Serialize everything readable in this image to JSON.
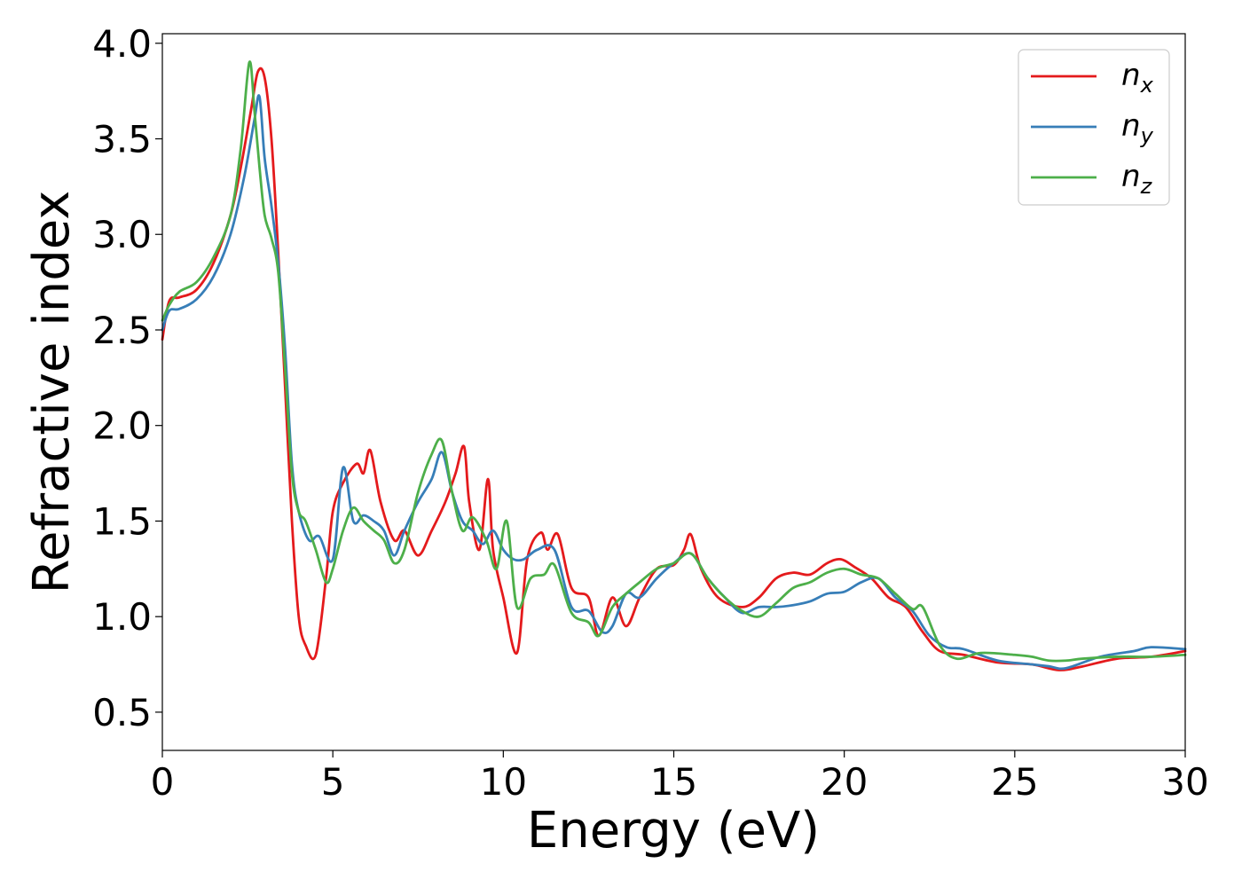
{
  "chart_data": {
    "type": "line",
    "title": "",
    "xlabel": "Energy (eV)",
    "ylabel": "Refractive index",
    "xlim": [
      0,
      30
    ],
    "ylim": [
      0.3,
      4.05
    ],
    "xticks": [
      0,
      5,
      10,
      15,
      20,
      25,
      30
    ],
    "xtick_labels": [
      "0",
      "5",
      "10",
      "15",
      "20",
      "25",
      "30"
    ],
    "yticks": [
      0.5,
      1.0,
      1.5,
      2.0,
      2.5,
      3.0,
      3.5,
      4.0
    ],
    "ytick_labels": [
      "0.5",
      "1.0",
      "1.5",
      "2.0",
      "2.5",
      "3.0",
      "3.5",
      "4.0"
    ],
    "grid": false,
    "legend_position": "top-right",
    "series": [
      {
        "name": "n_x",
        "label_base": "n",
        "label_sub": "x",
        "color": "#e41a1c",
        "x": [
          0,
          0.2,
          0.5,
          1.0,
          1.5,
          2.0,
          2.3,
          2.6,
          2.8,
          3.0,
          3.2,
          3.4,
          3.6,
          3.8,
          4.0,
          4.2,
          4.5,
          4.8,
          5.0,
          5.3,
          5.7,
          5.9,
          6.1,
          6.4,
          6.8,
          7.1,
          7.5,
          7.9,
          8.3,
          8.6,
          8.85,
          9.0,
          9.3,
          9.55,
          9.7,
          10.0,
          10.4,
          10.7,
          11.1,
          11.3,
          11.6,
          12.0,
          12.5,
          12.8,
          13.2,
          13.6,
          14.0,
          14.5,
          15.0,
          15.3,
          15.5,
          15.8,
          16.3,
          17.0,
          17.5,
          18.0,
          18.5,
          19.0,
          19.5,
          19.9,
          20.3,
          20.8,
          21.3,
          21.8,
          22.3,
          22.8,
          23.5,
          24.5,
          25.5,
          26.3,
          27.0,
          28.0,
          29.0,
          30.0
        ],
        "y": [
          2.45,
          2.65,
          2.67,
          2.71,
          2.85,
          3.1,
          3.35,
          3.65,
          3.85,
          3.82,
          3.5,
          2.9,
          2.2,
          1.5,
          1.0,
          0.85,
          0.8,
          1.2,
          1.55,
          1.7,
          1.8,
          1.75,
          1.87,
          1.6,
          1.4,
          1.45,
          1.32,
          1.45,
          1.6,
          1.75,
          1.89,
          1.6,
          1.35,
          1.72,
          1.35,
          1.1,
          0.81,
          1.3,
          1.44,
          1.35,
          1.43,
          1.15,
          1.1,
          0.9,
          1.1,
          0.95,
          1.1,
          1.25,
          1.27,
          1.35,
          1.43,
          1.25,
          1.1,
          1.05,
          1.1,
          1.2,
          1.23,
          1.22,
          1.28,
          1.3,
          1.26,
          1.2,
          1.1,
          1.05,
          0.92,
          0.82,
          0.8,
          0.76,
          0.75,
          0.72,
          0.74,
          0.78,
          0.79,
          0.82
        ]
      },
      {
        "name": "n_y",
        "label_base": "n",
        "label_sub": "y",
        "color": "#377eb8",
        "x": [
          0,
          0.2,
          0.5,
          1.0,
          1.5,
          2.0,
          2.4,
          2.7,
          2.85,
          3.0,
          3.2,
          3.4,
          3.6,
          3.8,
          4.0,
          4.3,
          4.6,
          5.0,
          5.3,
          5.6,
          5.9,
          6.2,
          6.5,
          6.8,
          7.1,
          7.5,
          7.9,
          8.2,
          8.5,
          8.8,
          9.1,
          9.4,
          9.7,
          10.0,
          10.3,
          10.6,
          11.0,
          11.5,
          12.0,
          12.5,
          12.9,
          13.2,
          13.6,
          14.0,
          14.5,
          15.0,
          15.5,
          16.0,
          16.5,
          17.0,
          17.5,
          18.0,
          18.5,
          19.0,
          19.5,
          20.0,
          20.5,
          21.0,
          21.5,
          22.0,
          22.5,
          23.0,
          23.5,
          24.5,
          25.5,
          26.0,
          26.5,
          27.5,
          28.5,
          29.0,
          30.0
        ],
        "y": [
          2.5,
          2.6,
          2.61,
          2.66,
          2.78,
          3.0,
          3.3,
          3.6,
          3.72,
          3.4,
          3.15,
          2.85,
          2.4,
          1.8,
          1.55,
          1.4,
          1.42,
          1.3,
          1.78,
          1.5,
          1.53,
          1.5,
          1.45,
          1.32,
          1.45,
          1.6,
          1.72,
          1.86,
          1.65,
          1.5,
          1.45,
          1.38,
          1.45,
          1.35,
          1.3,
          1.3,
          1.35,
          1.35,
          1.05,
          1.03,
          0.92,
          0.95,
          1.12,
          1.1,
          1.2,
          1.28,
          1.33,
          1.2,
          1.1,
          1.02,
          1.05,
          1.05,
          1.06,
          1.08,
          1.12,
          1.13,
          1.18,
          1.2,
          1.1,
          1.03,
          0.9,
          0.84,
          0.83,
          0.77,
          0.75,
          0.74,
          0.73,
          0.79,
          0.82,
          0.84,
          0.83
        ]
      },
      {
        "name": "n_z",
        "label_base": "n",
        "label_sub": "z",
        "color": "#4daf4a",
        "x": [
          0,
          0.2,
          0.5,
          1.0,
          1.5,
          2.0,
          2.3,
          2.55,
          2.7,
          2.85,
          3.0,
          3.2,
          3.4,
          3.6,
          3.8,
          4.0,
          4.2,
          4.5,
          4.8,
          5.0,
          5.3,
          5.6,
          5.9,
          6.2,
          6.5,
          6.8,
          7.1,
          7.5,
          7.9,
          8.2,
          8.5,
          8.8,
          9.1,
          9.5,
          9.8,
          10.1,
          10.4,
          10.8,
          11.2,
          11.5,
          12.0,
          12.5,
          12.8,
          13.2,
          13.6,
          14.0,
          14.5,
          15.0,
          15.5,
          16.0,
          16.5,
          17.0,
          17.5,
          18.0,
          18.5,
          19.0,
          19.5,
          20.0,
          20.5,
          21.0,
          21.5,
          22.0,
          22.3,
          22.8,
          23.3,
          24.0,
          25.0,
          25.5,
          26.0,
          26.5,
          27.0,
          28.0,
          29.0,
          30.0
        ],
        "y": [
          2.55,
          2.63,
          2.7,
          2.75,
          2.88,
          3.1,
          3.45,
          3.9,
          3.65,
          3.35,
          3.1,
          2.98,
          2.8,
          2.3,
          1.75,
          1.55,
          1.5,
          1.35,
          1.18,
          1.25,
          1.45,
          1.57,
          1.5,
          1.45,
          1.4,
          1.28,
          1.35,
          1.65,
          1.85,
          1.92,
          1.65,
          1.45,
          1.52,
          1.4,
          1.25,
          1.5,
          1.05,
          1.2,
          1.22,
          1.27,
          1.02,
          0.97,
          0.9,
          1.05,
          1.12,
          1.18,
          1.25,
          1.28,
          1.33,
          1.2,
          1.1,
          1.03,
          1.0,
          1.07,
          1.15,
          1.18,
          1.23,
          1.25,
          1.22,
          1.2,
          1.12,
          1.04,
          1.05,
          0.85,
          0.78,
          0.81,
          0.8,
          0.79,
          0.77,
          0.77,
          0.78,
          0.79,
          0.79,
          0.8
        ]
      }
    ]
  }
}
